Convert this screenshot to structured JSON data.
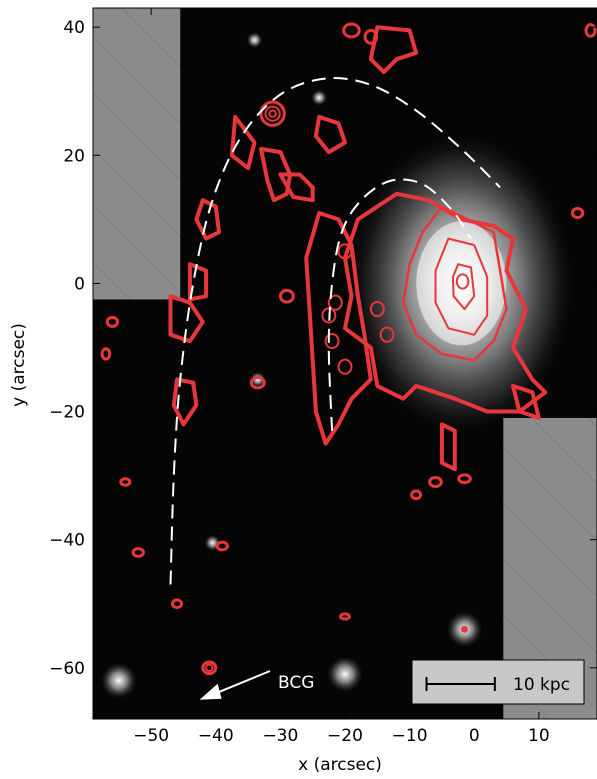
{
  "chart_data": {
    "type": "contour",
    "xlabel": "x (arcsec)",
    "ylabel": "y (arcsec)",
    "xlim": [
      -59,
      19
    ],
    "ylim": [
      -68,
      43
    ],
    "x_ticks": [
      -50,
      -40,
      -30,
      -20,
      -10,
      0,
      10
    ],
    "y_ticks": [
      -60,
      -40,
      -20,
      0,
      20,
      40
    ],
    "x_tick_labels": [
      "−50",
      "−40",
      "−30",
      "−20",
      "−10",
      "0",
      "10"
    ],
    "y_tick_labels": [
      "−60",
      "−40",
      "−20",
      "0",
      "20",
      "40"
    ],
    "grid": false,
    "annotations": [
      {
        "text": "BCG",
        "arrow_tip": [
          -42.5,
          -65.0
        ]
      }
    ],
    "scale_bar": {
      "label": "10 kpc",
      "x_start": -8.0,
      "x_end": 3.5,
      "y": -62.0
    },
    "masked_regions": [
      {
        "x": [
          -59,
          -45.5
        ],
        "y": [
          -2.5,
          43
        ]
      },
      {
        "x": [
          4.5,
          19
        ],
        "y": [
          -68,
          -21
        ]
      }
    ],
    "galaxy": {
      "center": [
        -2.0,
        0.0
      ]
    },
    "dashed_arcs": [
      {
        "name": "outer",
        "points": [
          [
            -47,
            -47
          ],
          [
            -46.5,
            -30
          ],
          [
            -45.5,
            -15
          ],
          [
            -43.5,
            0
          ],
          [
            -40.5,
            13
          ],
          [
            -36,
            23
          ],
          [
            -30,
            29.5
          ],
          [
            -23,
            32
          ],
          [
            -16,
            31
          ],
          [
            -9,
            27
          ],
          [
            -2,
            21
          ],
          [
            4,
            15
          ]
        ]
      },
      {
        "name": "inner",
        "points": [
          [
            -22,
            -23
          ],
          [
            -22.5,
            -10
          ],
          [
            -22,
            0
          ],
          [
            -20.5,
            8
          ],
          [
            -17.5,
            13
          ],
          [
            -13,
            16
          ],
          [
            -8,
            15.5
          ],
          [
            -3.5,
            11.5
          ],
          [
            -0.5,
            7
          ]
        ]
      }
    ],
    "point_sources": [
      {
        "x": -1.5,
        "y": -54
      },
      {
        "x": -20,
        "y": -61
      },
      {
        "x": -55,
        "y": -62
      },
      {
        "x": -24,
        "y": 29
      },
      {
        "x": -34,
        "y": 38
      },
      {
        "x": -40.5,
        "y": -40.5
      },
      {
        "x": -33.5,
        "y": -15
      }
    ],
    "colors": {
      "contour": "#e8373a",
      "dashed": "#ffffff",
      "mask": "#8c8c8c",
      "background": "#050505"
    }
  }
}
